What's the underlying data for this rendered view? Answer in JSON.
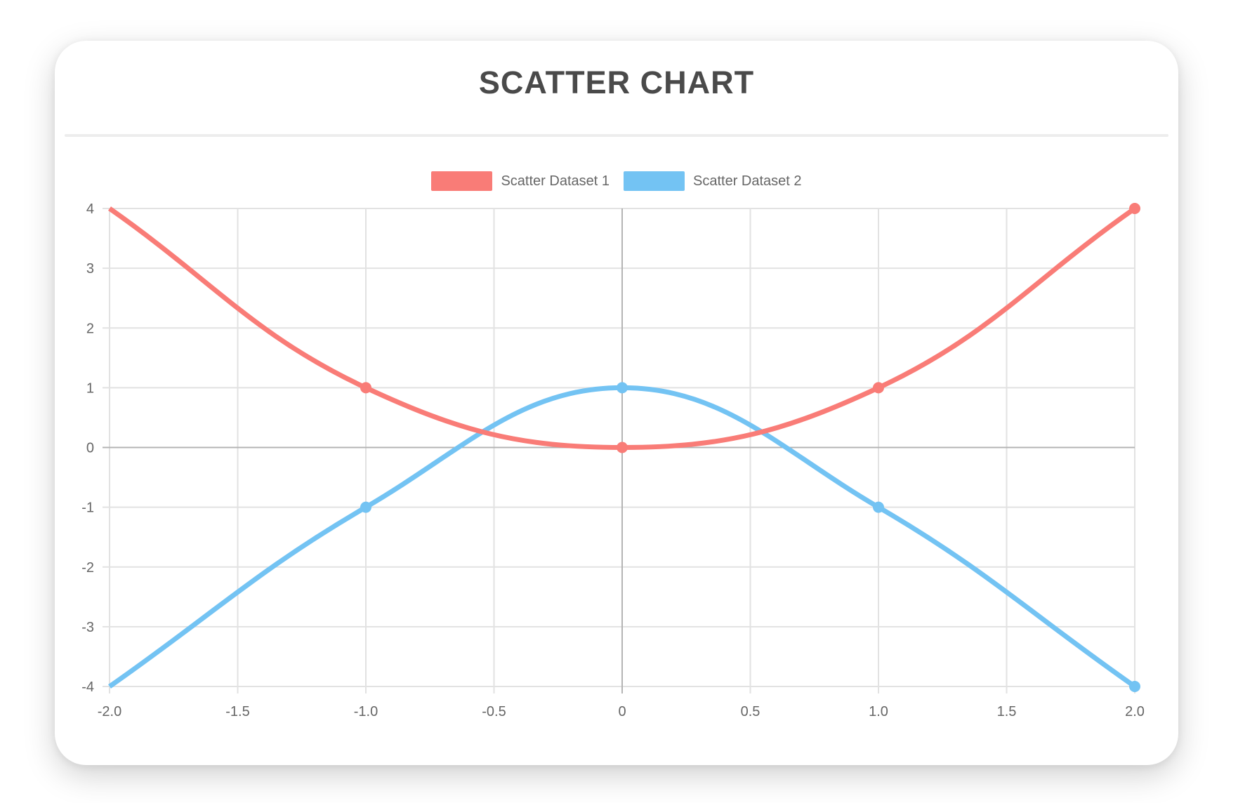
{
  "chart_data": {
    "type": "scatter",
    "title": "SCATTER CHART",
    "legend_position": "top",
    "grid": true,
    "xlim": [
      -2,
      2
    ],
    "ylim": [
      -4,
      4
    ],
    "x_ticks": [
      "-2.0",
      "-1.5",
      "-1.0",
      "-0.5",
      "0",
      "0.5",
      "1.0",
      "1.5",
      "2.0"
    ],
    "y_ticks": [
      "4",
      "3",
      "2",
      "1",
      "0",
      "-1",
      "-2",
      "-3",
      "-4"
    ],
    "series": [
      {
        "name": "Scatter Dataset 1",
        "color": "#f97c77",
        "points": [
          {
            "x": -2,
            "y": 4
          },
          {
            "x": -1,
            "y": 1
          },
          {
            "x": 0,
            "y": 0
          },
          {
            "x": 1,
            "y": 1
          },
          {
            "x": 2,
            "y": 4
          }
        ]
      },
      {
        "name": "Scatter Dataset 2",
        "color": "#73c3f3",
        "points": [
          {
            "x": -2,
            "y": -4
          },
          {
            "x": -1,
            "y": -1
          },
          {
            "x": 0,
            "y": 1
          },
          {
            "x": 1,
            "y": -1
          },
          {
            "x": 2,
            "y": -4
          }
        ]
      }
    ],
    "colors": {
      "page_background": "#ffffff",
      "card_background": "#ffffff",
      "title": "#4a4a4a",
      "divider": "#ededed",
      "grid": "#e2e2e2",
      "zero_line": "#b4b4b4",
      "tick_label": "#666666",
      "legend_label": "#666666"
    }
  }
}
